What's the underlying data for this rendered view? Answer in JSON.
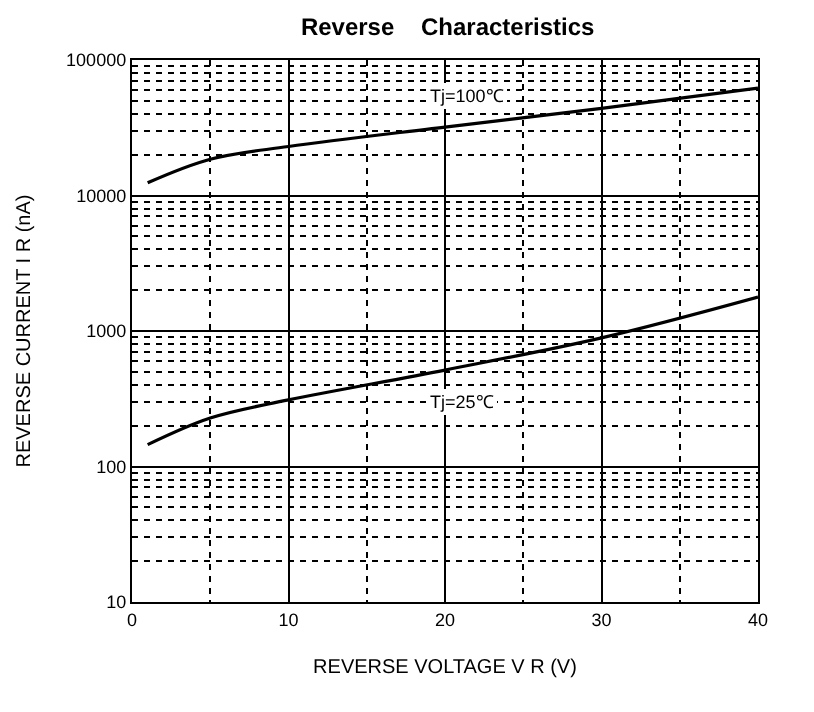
{
  "chart_data": {
    "type": "line",
    "title": "Reverse    Characteristics",
    "xlabel": "REVERSE VOLTAGE V R (V)",
    "ylabel": "REVERSE CURRENT I R (nA)",
    "log": "y",
    "grid": true,
    "marker": "none",
    "line_style": "solid",
    "xlim": [
      0,
      40
    ],
    "xticks": [
      0,
      10,
      20,
      30,
      40
    ],
    "ylim": [
      10,
      100000
    ],
    "yticks": [
      10,
      100,
      1000,
      10000,
      100000
    ],
    "series": [
      {
        "color": "#000000",
        "x": [
          1,
          5,
          10,
          20,
          30,
          40
        ],
        "values": [
          12400,
          18500,
          23000,
          32000,
          44000,
          62000
        ]
      },
      {
        "color": "#000000",
        "x": [
          1,
          5,
          10,
          20,
          30,
          40
        ],
        "values": [
          145,
          228,
          310,
          515,
          890,
          1780
        ]
      }
    ],
    "annotations": [
      "Tj=100℃",
      "Tj=25℃"
    ]
  }
}
